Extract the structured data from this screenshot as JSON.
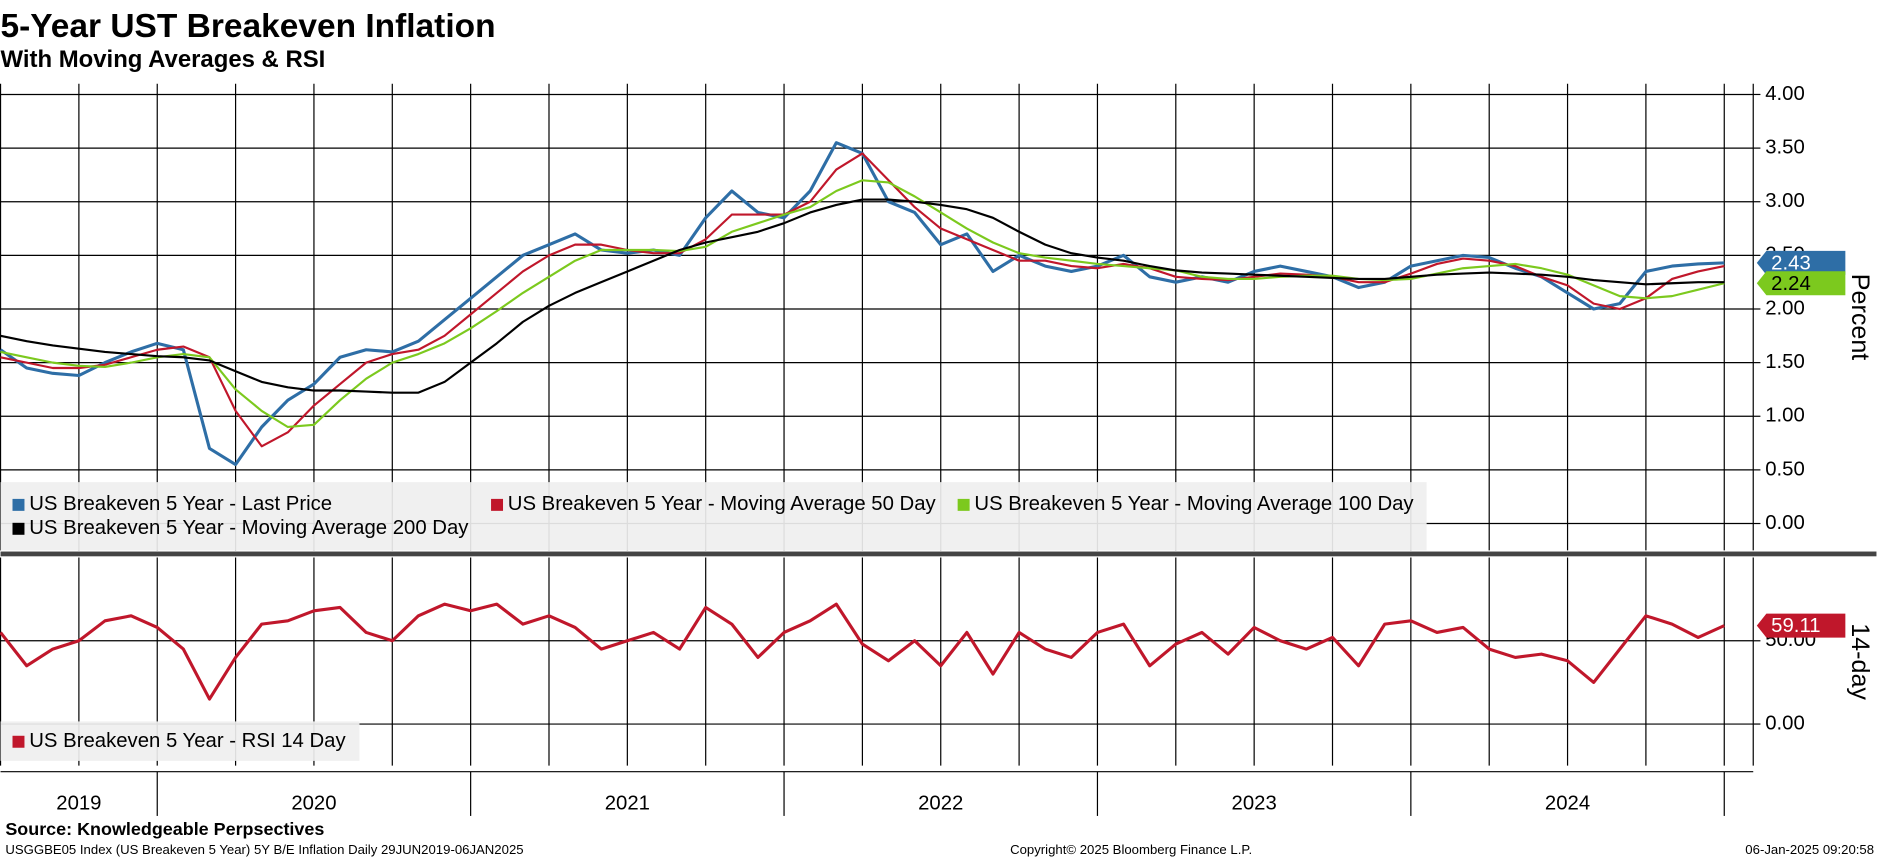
{
  "title": "5-Year UST Breakeven Inflation",
  "subtitle": "With Moving Averages & RSI",
  "source": "Source: Knowledgeable Perpsectives",
  "footer_left": "USGGBE05 Index (US Breakeven 5 Year) 5Y B/E Inflation  Daily 29JUN2019-06JAN2025",
  "footer_center": "Copyright© 2025 Bloomberg Finance L.P.",
  "footer_right": "06-Jan-2025 09:20:58",
  "chart_data": [
    {
      "type": "line",
      "y_label": "Percent",
      "grid": true,
      "categories": [
        null,
        null,
        null,
        "2019",
        null,
        null,
        null,
        null,
        null,
        null,
        null,
        null,
        "2020",
        null,
        null,
        null,
        null,
        null,
        null,
        null,
        null,
        null,
        null,
        null,
        "2021",
        null,
        null,
        null,
        null,
        null,
        null,
        null,
        null,
        null,
        null,
        null,
        "2022",
        null,
        null,
        null,
        null,
        null,
        null,
        null,
        null,
        null,
        null,
        null,
        "2023",
        null,
        null,
        null,
        null,
        null,
        null,
        null,
        null,
        null,
        null,
        null,
        "2024",
        null,
        null,
        null,
        null,
        null,
        null
      ],
      "ylim": [
        -0.25,
        4.1
      ],
      "yticks": [
        {
          "value": 0,
          "label": "0.00"
        },
        {
          "value": 0.5,
          "label": "0.50"
        },
        {
          "value": 1,
          "label": "1.00"
        },
        {
          "value": 1.5,
          "label": "1.50"
        },
        {
          "value": 2,
          "label": "2.00"
        },
        {
          "value": 2.5,
          "label": "2.50"
        },
        {
          "value": 3,
          "label": "3.00"
        },
        {
          "value": 3.5,
          "label": "3.50"
        },
        {
          "value": 4,
          "label": "4.00"
        }
      ],
      "series": [
        {
          "name": "US Breakeven 5 Year - Last Price",
          "color": "#2e6ea6",
          "end_label": "2.43",
          "values": [
            1.62,
            1.45,
            1.4,
            1.38,
            1.5,
            1.6,
            1.68,
            1.62,
            0.7,
            0.55,
            0.9,
            1.15,
            1.3,
            1.55,
            1.62,
            1.6,
            1.7,
            1.9,
            2.1,
            2.3,
            2.5,
            2.6,
            2.7,
            2.55,
            2.52,
            2.55,
            2.5,
            2.85,
            3.1,
            2.9,
            2.85,
            3.1,
            3.55,
            3.45,
            3.0,
            2.9,
            2.6,
            2.7,
            2.35,
            2.5,
            2.4,
            2.35,
            2.4,
            2.5,
            2.3,
            2.25,
            2.3,
            2.25,
            2.35,
            2.4,
            2.35,
            2.3,
            2.2,
            2.25,
            2.4,
            2.45,
            2.5,
            2.48,
            2.38,
            2.3,
            2.15,
            2.0,
            2.05,
            2.35,
            2.4,
            2.42,
            2.43
          ]
        },
        {
          "name": "US Breakeven 5 Year - Moving Average 50 Day",
          "color": "#c0172b",
          "values": [
            1.55,
            1.5,
            1.45,
            1.45,
            1.48,
            1.55,
            1.62,
            1.65,
            1.55,
            1.05,
            0.72,
            0.85,
            1.1,
            1.3,
            1.5,
            1.58,
            1.62,
            1.75,
            1.95,
            2.15,
            2.35,
            2.5,
            2.6,
            2.6,
            2.55,
            2.52,
            2.52,
            2.65,
            2.88,
            2.88,
            2.88,
            3.0,
            3.3,
            3.45,
            3.2,
            2.95,
            2.75,
            2.65,
            2.55,
            2.45,
            2.45,
            2.4,
            2.38,
            2.42,
            2.38,
            2.3,
            2.28,
            2.27,
            2.3,
            2.33,
            2.32,
            2.3,
            2.25,
            2.25,
            2.33,
            2.42,
            2.47,
            2.45,
            2.4,
            2.3,
            2.22,
            2.05,
            2.0,
            2.1,
            2.28,
            2.35,
            2.4
          ]
        },
        {
          "name": "US Breakeven 5 Year - Moving Average 100 Day",
          "color": "#7cc91e",
          "end_label": "2.24",
          "values": [
            1.6,
            1.55,
            1.5,
            1.47,
            1.46,
            1.5,
            1.55,
            1.58,
            1.55,
            1.25,
            1.05,
            0.9,
            0.92,
            1.15,
            1.35,
            1.5,
            1.58,
            1.68,
            1.82,
            1.98,
            2.15,
            2.3,
            2.45,
            2.55,
            2.55,
            2.55,
            2.54,
            2.58,
            2.72,
            2.8,
            2.88,
            2.95,
            3.1,
            3.2,
            3.18,
            3.05,
            2.9,
            2.75,
            2.62,
            2.52,
            2.48,
            2.45,
            2.42,
            2.4,
            2.38,
            2.36,
            2.3,
            2.28,
            2.28,
            2.3,
            2.31,
            2.31,
            2.28,
            2.27,
            2.28,
            2.33,
            2.38,
            2.4,
            2.42,
            2.38,
            2.32,
            2.22,
            2.12,
            2.1,
            2.12,
            2.18,
            2.24
          ]
        },
        {
          "name": "US Breakeven 5 Year - Moving Average 200 Day",
          "color": "#000000",
          "values": [
            1.75,
            1.7,
            1.66,
            1.63,
            1.6,
            1.58,
            1.56,
            1.55,
            1.52,
            1.42,
            1.32,
            1.27,
            1.24,
            1.24,
            1.23,
            1.22,
            1.22,
            1.32,
            1.5,
            1.68,
            1.88,
            2.03,
            2.15,
            2.25,
            2.35,
            2.45,
            2.55,
            2.62,
            2.67,
            2.72,
            2.8,
            2.9,
            2.97,
            3.02,
            3.02,
            3.0,
            2.97,
            2.93,
            2.85,
            2.72,
            2.6,
            2.52,
            2.48,
            2.45,
            2.4,
            2.36,
            2.34,
            2.33,
            2.32,
            2.31,
            2.3,
            2.29,
            2.28,
            2.28,
            2.3,
            2.32,
            2.33,
            2.34,
            2.33,
            2.32,
            2.3,
            2.27,
            2.25,
            2.23,
            2.24,
            2.25,
            2.25
          ]
        }
      ]
    },
    {
      "type": "line",
      "y_label": "14-day",
      "grid": true,
      "ylim": [
        -25,
        100
      ],
      "yticks": [
        {
          "value": 0,
          "label": "0.00"
        },
        {
          "value": 50,
          "label": "50.00"
        }
      ],
      "series": [
        {
          "name": "US Breakeven 5 Year - RSI 14 Day",
          "color": "#c0172b",
          "end_label": "59.11",
          "values": [
            55,
            35,
            45,
            50,
            62,
            65,
            58,
            45,
            15,
            40,
            60,
            62,
            68,
            70,
            55,
            50,
            65,
            72,
            68,
            72,
            60,
            65,
            58,
            45,
            50,
            55,
            45,
            70,
            60,
            40,
            55,
            62,
            72,
            48,
            38,
            50,
            35,
            55,
            30,
            55,
            45,
            40,
            55,
            60,
            35,
            48,
            55,
            42,
            58,
            50,
            45,
            52,
            35,
            60,
            62,
            55,
            58,
            45,
            40,
            42,
            38,
            25,
            45,
            65,
            60,
            52,
            59.11
          ]
        }
      ]
    }
  ]
}
